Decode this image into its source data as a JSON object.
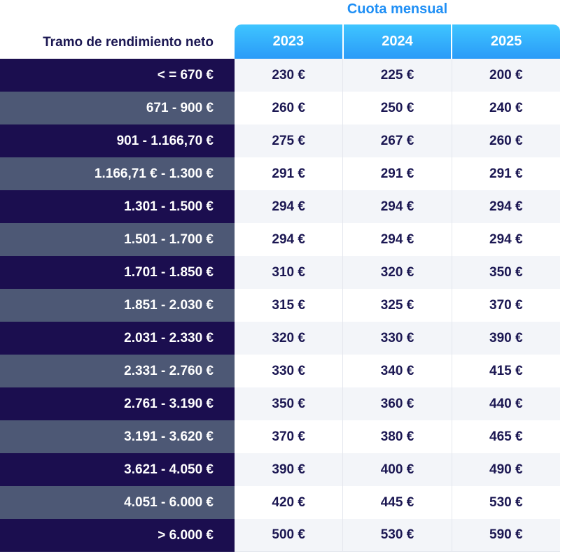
{
  "header": {
    "super_title": "Cuota mensual",
    "range_title": "Tramo de rendimiento neto",
    "years": [
      "2023",
      "2024",
      "2025"
    ]
  },
  "rows": [
    {
      "range": "< = 670 €",
      "values": [
        "230 €",
        "225 €",
        "200 €"
      ]
    },
    {
      "range": "671 - 900 €",
      "values": [
        "260 €",
        "250 €",
        "240 €"
      ]
    },
    {
      "range": "901 - 1.166,70  €",
      "values": [
        "275 €",
        "267 €",
        "260 €"
      ]
    },
    {
      "range": "1.166,71 € - 1.300 €",
      "values": [
        "291 €",
        "291 €",
        "291 €"
      ]
    },
    {
      "range": "1.301 - 1.500 €",
      "values": [
        "294 €",
        "294 €",
        "294 €"
      ]
    },
    {
      "range": "1.501 - 1.700 €",
      "values": [
        "294 €",
        "294 €",
        "294 €"
      ]
    },
    {
      "range": "1.701 - 1.850 €",
      "values": [
        "310 €",
        "320 €",
        "350 €"
      ]
    },
    {
      "range": "1.851 - 2.030 €",
      "values": [
        "315 €",
        "325 €",
        "370 €"
      ]
    },
    {
      "range": "2.031 - 2.330 €",
      "values": [
        "320 €",
        "330 €",
        "390 €"
      ]
    },
    {
      "range": "2.331 - 2.760 €",
      "values": [
        "330 €",
        "340 €",
        "415 €"
      ]
    },
    {
      "range": "2.761 - 3.190 €",
      "values": [
        "350 €",
        "360 €",
        "440 €"
      ]
    },
    {
      "range": "3.191 - 3.620 €",
      "values": [
        "370 €",
        "380 €",
        "465 €"
      ]
    },
    {
      "range": "3.621 - 4.050 €",
      "values": [
        "390 €",
        "400 €",
        "490 €"
      ]
    },
    {
      "range": "4.051 - 6.000 €",
      "values": [
        "420 €",
        "445 €",
        "530 €"
      ]
    },
    {
      "range": "> 6.000 €",
      "values": [
        "500 €",
        "530 €",
        "590 €"
      ]
    }
  ],
  "colors": {
    "accent": "#1f8ff5",
    "header_gradient_top": "#3fc5ff",
    "header_gradient_bottom": "#2a9bf8",
    "row_dark": "#1b0e4f",
    "row_light": "#4d5875",
    "value_text": "#1b1752"
  }
}
